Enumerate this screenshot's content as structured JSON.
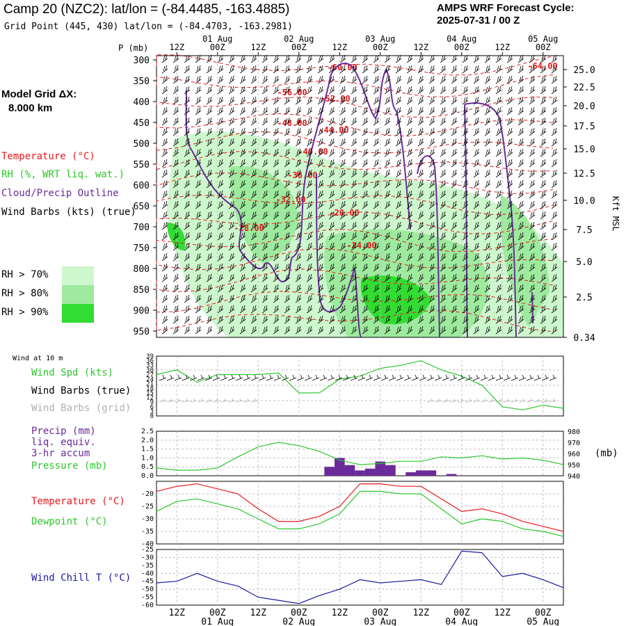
{
  "header": {
    "title": "Camp 20 (NZC2):  lat/lon = (-84.4485, -163.4885)",
    "grid_point": "Grid Point (445, 430) lat/lon = (-84.4703, -163.2981)",
    "cycle_label": "AMPS WRF Forecast Cycle:",
    "cycle_value": "2025-07-31 / 00  Z"
  },
  "legend": {
    "model_grid_line1": "Model Grid ΔX:",
    "model_grid_line2": "8.000 km",
    "temperature": "Temperature (°C)",
    "rh": "RH (%, WRT liq. wat.)",
    "cloud": "Cloud/Precip Outline",
    "wind": "Wind Barbs (kts) (true)",
    "rh70": "RH > 70%",
    "rh80": "RH > 80%",
    "rh90": "RH > 90%",
    "p_mb": "P (mb)",
    "kft": "Kft MSL",
    "wind10m": "Wind at 10 m",
    "wspd": "Wind Spd (kts)",
    "wbarbs_true": "Wind Barbs (true)",
    "wbarbs_grid": "Wind Barbs (grid)",
    "precip1": "Precip (mm)",
    "precip2": "liq. equiv.",
    "precip3": "3-hr accum",
    "pressure": "Pressure (mb)",
    "pres_unit": "(mb)",
    "temp2": "Temperature (°C)",
    "dewpoint": "Dewpoint (°C)",
    "windchill": "Wind Chill T (°C)"
  },
  "colors": {
    "red": "#e8191c",
    "green": "#2cc82c",
    "purple": "#6a2a9a",
    "blue": "#1a1aa0",
    "rh70": "#cdf7cd",
    "rh80": "#9eea9e",
    "rh90": "#32dc32",
    "grid": "#c0c0c0",
    "gray": "#b0b0b0"
  },
  "chart_data": [
    {
      "type": "heatmap",
      "name": "cross-section",
      "y_axis_pressure_mb": [
        "300",
        "350",
        "400",
        "450",
        "500",
        "550",
        "600",
        "650",
        "700",
        "750",
        "800",
        "850",
        "900",
        "950"
      ],
      "y_axis_kft_msl": [
        "25.0",
        "22.5",
        "20.0",
        "17.5",
        "15.0",
        "12.5",
        "10.0",
        "7.5",
        "5.0",
        "2.5",
        "0.34"
      ],
      "x_top_times": [
        "12Z",
        "00Z",
        "12Z",
        "00Z",
        "12Z",
        "00Z",
        "12Z",
        "00Z",
        "12Z",
        "00Z"
      ],
      "x_top_dates": [
        "01 Aug",
        "02 Aug",
        "03 Aug",
        "04 Aug",
        "05 Aug"
      ],
      "temperature_labels": [
        "-60.00",
        "-64.00",
        "-56.00",
        "-52.00",
        "-48.00",
        "-44.00",
        "-40.00",
        "-36.00",
        "-32.00",
        "-28.00",
        "-20.00",
        "-24.00"
      ]
    },
    {
      "type": "line",
      "name": "wind-10m",
      "ylim": [
        0,
        39
      ],
      "yticks": [
        "39",
        "36",
        "33",
        "30",
        "27",
        "24",
        "21",
        "18",
        "15",
        "12",
        "9",
        "6",
        "3",
        "0"
      ],
      "series": [
        {
          "name": "Wind Spd (kts)",
          "x_hours": [
            0,
            6,
            12,
            18,
            24,
            30,
            36,
            42,
            48,
            54,
            60,
            66,
            72,
            78,
            84,
            90,
            96,
            102,
            108,
            114,
            120
          ],
          "values": [
            27,
            30,
            22,
            27,
            27,
            27,
            28,
            15,
            15,
            24,
            26,
            31,
            33,
            36,
            30,
            26,
            20,
            6,
            4,
            7,
            5
          ]
        }
      ]
    },
    {
      "type": "bar",
      "name": "precip-pressure",
      "ylim_precip": [
        0,
        2.5
      ],
      "yticks_precip": [
        "2.5",
        "2.0",
        "1.5",
        "1.0",
        "0.5",
        "0.0"
      ],
      "yticks_pressure": [
        "980",
        "970",
        "960",
        "950",
        "940"
      ],
      "precip": {
        "name": "Precip (mm)",
        "x_hours": [
          51,
          54,
          57,
          60,
          63,
          66,
          69,
          75,
          78,
          81,
          87
        ],
        "values": [
          0.5,
          1.0,
          0.6,
          0.3,
          0.4,
          0.8,
          0.6,
          0.2,
          0.3,
          0.3,
          0.1
        ]
      },
      "pressure": {
        "name": "Pressure (mb)",
        "x_hours": [
          0,
          6,
          12,
          18,
          24,
          30,
          36,
          42,
          48,
          54,
          60,
          66,
          72,
          78,
          84,
          90,
          96,
          102,
          108,
          114,
          120
        ],
        "values": [
          947,
          945,
          945,
          947,
          957,
          966,
          970,
          967,
          962,
          954,
          950,
          951,
          953,
          953,
          957,
          956,
          958,
          955,
          956,
          954,
          950
        ]
      }
    },
    {
      "type": "line",
      "name": "temp-dewpoint",
      "ylim": [
        -40,
        -15
      ],
      "yticks": [
        "-20",
        "-25",
        "-30",
        "-35",
        "-40"
      ],
      "series": [
        {
          "name": "Temperature (°C)",
          "x_hours": [
            0,
            6,
            12,
            18,
            24,
            30,
            36,
            42,
            48,
            54,
            60,
            66,
            72,
            78,
            84,
            90,
            96,
            102,
            108,
            114,
            120
          ],
          "values": [
            -19,
            -17,
            -16,
            -18,
            -20,
            -26,
            -31,
            -31,
            -29,
            -25,
            -16,
            -16,
            -17,
            -17,
            -22,
            -27,
            -26,
            -28,
            -31,
            -33,
            -35
          ]
        },
        {
          "name": "Dewpoint (°C)",
          "x_hours": [
            0,
            6,
            12,
            18,
            24,
            30,
            36,
            42,
            48,
            54,
            60,
            66,
            72,
            78,
            84,
            90,
            96,
            102,
            108,
            114,
            120
          ],
          "values": [
            -27,
            -23,
            -22,
            -24,
            -26,
            -30,
            -34,
            -34,
            -32,
            -28,
            -19,
            -19,
            -20,
            -20,
            -26,
            -32,
            -30,
            -31,
            -34,
            -35,
            -37
          ]
        }
      ]
    },
    {
      "type": "line",
      "name": "wind-chill",
      "ylim": [
        -60,
        -25
      ],
      "yticks": [
        "-25",
        "-30",
        "-35",
        "-40",
        "-45",
        "-50",
        "-55",
        "-60"
      ],
      "series": [
        {
          "name": "Wind Chill T (°C)",
          "x_hours": [
            0,
            6,
            12,
            18,
            24,
            30,
            36,
            42,
            48,
            54,
            60,
            66,
            72,
            78,
            84,
            90,
            96,
            102,
            108,
            114,
            120
          ],
          "values": [
            -46,
            -45,
            -40,
            -45,
            -48,
            -55,
            -57,
            -59,
            -54,
            -50,
            -44,
            -46,
            -45,
            -44,
            -47,
            -26,
            -27,
            -42,
            -40,
            -44,
            -49
          ]
        }
      ]
    }
  ],
  "bottom_axis": {
    "times": [
      "12Z",
      "00Z",
      "12Z",
      "00Z",
      "12Z",
      "00Z",
      "12Z",
      "00Z",
      "12Z",
      "00Z"
    ],
    "dates": [
      "01 Aug",
      "02 Aug",
      "03 Aug",
      "04 Aug",
      "05 Aug"
    ]
  }
}
